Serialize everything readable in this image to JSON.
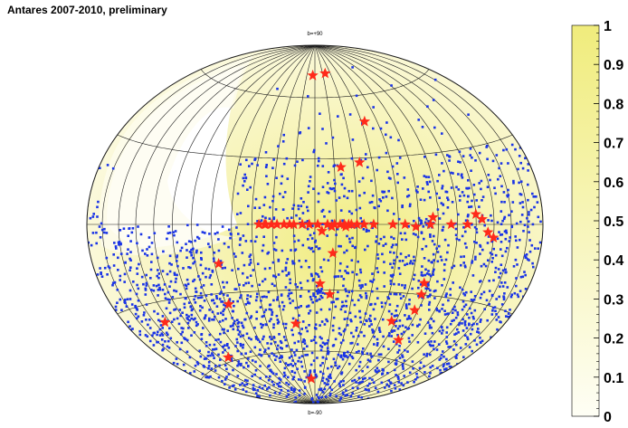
{
  "title": "Antares 2007-2010, preliminary",
  "chart_data": {
    "type": "scatter",
    "projection": "hammer-aitoff",
    "title": "Antares 2007-2010, preliminary",
    "pole_labels": {
      "north": "b=+90",
      "south": "b=-90"
    },
    "colorbar": {
      "ticks": [
        "0",
        "0.1",
        "0.2",
        "0.3",
        "0.4",
        "0.5",
        "0.6",
        "0.7",
        "0.8",
        "0.9",
        "1"
      ],
      "range": [
        0,
        1
      ],
      "color_low": "#fefef5",
      "color_high": "#f0ec7c"
    },
    "grid": true,
    "grid_lat_step_deg": 30,
    "grid_lon_step_deg": 15,
    "colors": {
      "events": "#1a34e6",
      "sources": "#ff2a1a",
      "grid": "#1c1c1c",
      "fill_high": "#f0ec7c",
      "fill_low": "#fefef5"
    },
    "events_count": 2190,
    "sources": [
      {
        "l": -4,
        "b": 72
      },
      {
        "l": 20,
        "b": 73
      },
      {
        "l": 48,
        "b": 47
      },
      {
        "l": 20,
        "b": 26
      },
      {
        "l": 35,
        "b": 28
      },
      {
        "l": -40,
        "b": 0
      },
      {
        "l": -36,
        "b": 0
      },
      {
        "l": -31,
        "b": 0
      },
      {
        "l": -27,
        "b": 0
      },
      {
        "l": -22,
        "b": 0
      },
      {
        "l": -18,
        "b": 0
      },
      {
        "l": -15,
        "b": 0
      },
      {
        "l": -9,
        "b": 0
      },
      {
        "l": -4,
        "b": 0
      },
      {
        "l": 2,
        "b": 0
      },
      {
        "l": 9,
        "b": 0
      },
      {
        "l": 14,
        "b": 0
      },
      {
        "l": 18,
        "b": 0
      },
      {
        "l": 21,
        "b": 0
      },
      {
        "l": 24,
        "b": 0
      },
      {
        "l": 26,
        "b": 0
      },
      {
        "l": 30,
        "b": 0
      },
      {
        "l": 35,
        "b": 0
      },
      {
        "l": 42,
        "b": 0
      },
      {
        "l": 56,
        "b": 0
      },
      {
        "l": 65,
        "b": 0
      },
      {
        "l": 73,
        "b": -1
      },
      {
        "l": 84,
        "b": 0
      },
      {
        "l": 86,
        "b": 3
      },
      {
        "l": 100,
        "b": 0
      },
      {
        "l": 113,
        "b": 0
      },
      {
        "l": 120,
        "b": 4
      },
      {
        "l": 125,
        "b": 2
      },
      {
        "l": 130,
        "b": -3
      },
      {
        "l": 135,
        "b": -5
      },
      {
        "l": -35,
        "b": 0
      },
      {
        "l": 12,
        "b": -1
      },
      {
        "l": 22,
        "b": -1
      },
      {
        "l": 5,
        "b": -3
      },
      {
        "l": 13,
        "b": -13
      },
      {
        "l": -72,
        "b": -17
      },
      {
        "l": 4,
        "b": -27
      },
      {
        "l": 12,
        "b": -32
      },
      {
        "l": 86,
        "b": -25
      },
      {
        "l": 87,
        "b": -30
      },
      {
        "l": 87,
        "b": -37
      },
      {
        "l": -73,
        "b": -35
      },
      {
        "l": 71,
        "b": -43
      },
      {
        "l": 89,
        "b": -51
      },
      {
        "l": -140,
        "b": -38
      },
      {
        "l": -18,
        "b": -46
      },
      {
        "l": -110,
        "b": -58
      },
      {
        "l": -8,
        "b": -75
      }
    ]
  }
}
